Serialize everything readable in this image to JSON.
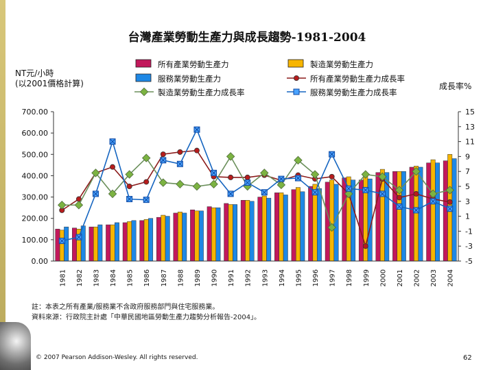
{
  "slide": {
    "title": "台灣產業勞動生產力與成長趨勢-1981-2004",
    "y_left_unit_line1": "NT元/小時",
    "y_left_unit_line2": "(以2001價格計算)",
    "y_right_unit": "成長率%",
    "notes_line1": "註：本表之所有產業/服務業不含政府服務部門與住宅服務業。",
    "notes_line2": "資料來源：行政院主計處「中華民國地區勞動生產力趨勢分析報告-2004」。",
    "copyright": "© 2007 Pearson Addison-Wesley. All rights reserved.",
    "page_number": "62"
  },
  "chart_data": {
    "type": "bar",
    "categories": [
      "1981",
      "1982",
      "1983",
      "1984",
      "1985",
      "1986",
      "1987",
      "1988",
      "1989",
      "1990",
      "1991",
      "1992",
      "1993",
      "1994",
      "1995",
      "1996",
      "1997",
      "1998",
      "1999",
      "2000",
      "2001",
      "2002",
      "2003",
      "2004"
    ],
    "ylim": [
      0,
      700
    ],
    "y_ticks": [
      "700.00",
      "600.00",
      "500.00",
      "400.00",
      "300.00",
      "200.00",
      "100.00",
      "0.00"
    ],
    "y2lim": [
      -5,
      15
    ],
    "y2_ticks": [
      "15",
      "13",
      "11",
      "9",
      "7",
      "5",
      "3",
      "1",
      "-1",
      "-3",
      "-5"
    ],
    "legend_position": "top",
    "series": [
      {
        "name": "所有產業勞動生產力",
        "kind": "bar",
        "axis": "left",
        "color": "#c2185b",
        "values": [
          150,
          155,
          160,
          170,
          180,
          190,
          205,
          225,
          240,
          255,
          270,
          285,
          300,
          320,
          335,
          350,
          370,
          390,
          380,
          415,
          420,
          440,
          460,
          470
        ]
      },
      {
        "name": "製造業勞動生產力",
        "kind": "bar",
        "axis": "left",
        "color": "#f7b500",
        "values": [
          145,
          150,
          160,
          170,
          185,
          195,
          215,
          230,
          235,
          250,
          265,
          285,
          305,
          320,
          345,
          360,
          380,
          395,
          400,
          430,
          420,
          445,
          475,
          500
        ]
      },
      {
        "name": "服務業勞動生產力",
        "kind": "bar",
        "axis": "left",
        "color": "#1e88e5",
        "values": [
          160,
          165,
          170,
          180,
          190,
          200,
          210,
          225,
          235,
          250,
          265,
          280,
          295,
          310,
          325,
          340,
          360,
          380,
          385,
          415,
          420,
          440,
          460,
          480
        ]
      },
      {
        "name": "所有產業勞動生產力成長率",
        "kind": "line",
        "axis": "right",
        "color": "#8b1a1a",
        "values": [
          1.8,
          3.3,
          6.8,
          7.6,
          5.0,
          5.6,
          9.3,
          9.6,
          9.8,
          6.3,
          6.2,
          6.2,
          6.5,
          5.8,
          6.5,
          6.0,
          6.3,
          4.0,
          -3.0,
          6.0,
          3.5,
          4.0,
          3.3,
          2.9
        ]
      },
      {
        "name": "製造業勞動生產力成長率",
        "kind": "line",
        "axis": "right",
        "color": "#6a8f5a",
        "values": [
          2.5,
          2.5,
          6.8,
          4.0,
          6.6,
          8.8,
          5.5,
          5.3,
          5.0,
          5.3,
          9.0,
          5.0,
          6.8,
          5.2,
          8.5,
          6.6,
          -0.5,
          4.0,
          6.6,
          6.3,
          4.5,
          7.0,
          4.0,
          4.5
        ]
      },
      {
        "name": "服務業勞動生產力成長率",
        "kind": "line",
        "axis": "right",
        "color": "#1565c0",
        "values": [
          -2.3,
          -1.8,
          4.0,
          11.0,
          3.3,
          3.2,
          8.5,
          8.0,
          12.6,
          6.8,
          4.0,
          5.5,
          4.2,
          6.0,
          6.1,
          4.2,
          9.3,
          4.7,
          4.5,
          4.0,
          2.3,
          1.8,
          3.0,
          2.0
        ]
      }
    ]
  }
}
